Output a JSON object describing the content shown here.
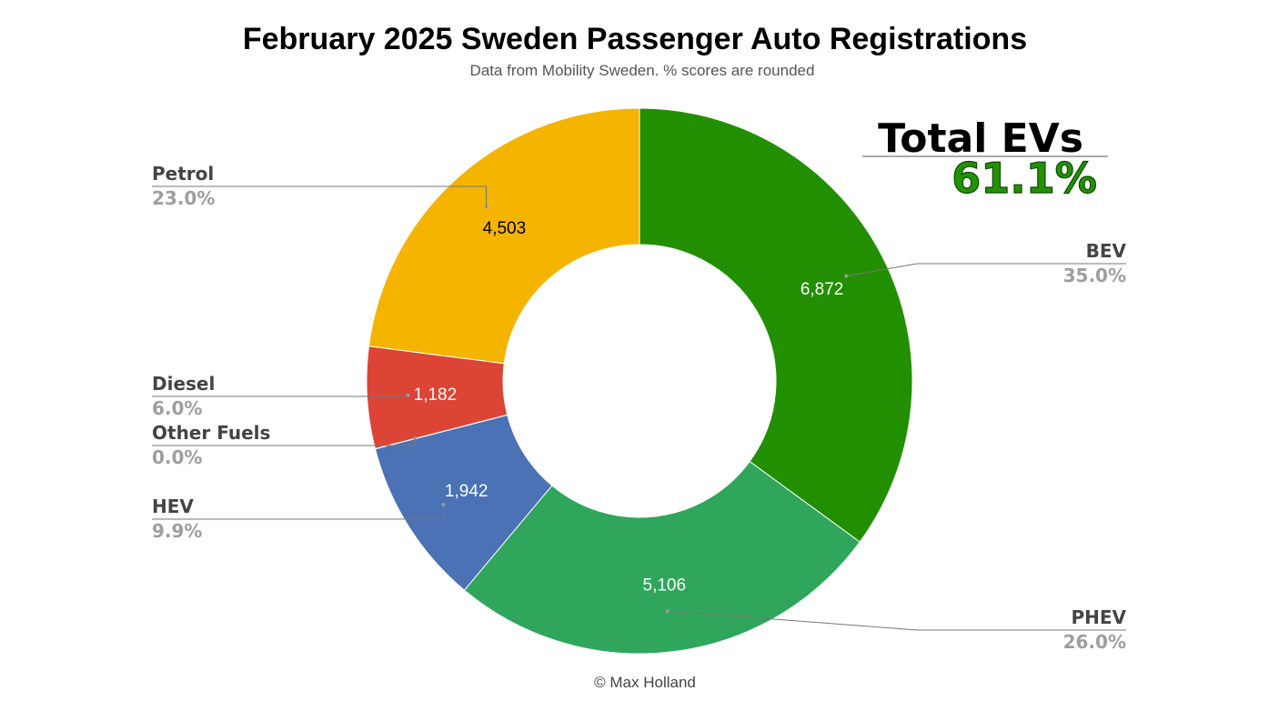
{
  "chart_data": {
    "type": "pie",
    "donut": true,
    "title": "February 2025 Sweden Passenger Auto Registrations",
    "subtitle": "Data from Mobility Sweden. % scores are rounded",
    "credit": "© Max Holland",
    "slices": [
      {
        "name": "BEV",
        "value": 6872,
        "value_label": "6,872",
        "percent_label": "35.0%",
        "color": "#228f00"
      },
      {
        "name": "PHEV",
        "value": 5106,
        "value_label": "5,106",
        "percent_label": "26.0%",
        "color": "#2fa65c"
      },
      {
        "name": "HEV",
        "value": 1942,
        "value_label": "1,942",
        "percent_label": "9.9%",
        "color": "#4a72b5"
      },
      {
        "name": "Other Fuels",
        "value": 3,
        "value_label": "",
        "percent_label": "0.0%",
        "color": "#9e9e9e"
      },
      {
        "name": "Diesel",
        "value": 1182,
        "value_label": "1,182",
        "percent_label": "6.0%",
        "color": "#dc4436"
      },
      {
        "name": "Petrol",
        "value": 4503,
        "value_label": "4,503",
        "percent_label": "23.0%",
        "color": "#f4b400"
      }
    ],
    "annotation": {
      "label": "Total EVs",
      "value": "61.1%"
    }
  }
}
